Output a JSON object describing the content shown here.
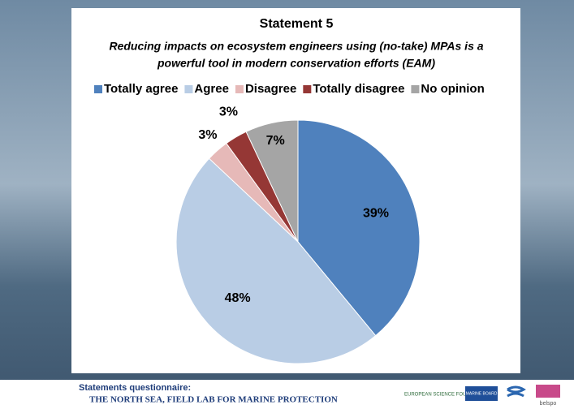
{
  "chart_data": {
    "type": "pie",
    "title": "Statement 5",
    "subtitle": [
      "Reducing impacts on ecosystem engineers using (no-take) MPAs is a",
      "powerful tool in modern conservation efforts (EAM)"
    ],
    "categories": [
      "Totally agree",
      "Agree",
      "Disagree",
      "Totally disagree",
      "No opinion"
    ],
    "values": [
      39,
      48,
      3,
      3,
      7
    ],
    "value_labels": [
      "39%",
      "48%",
      "3%",
      "3%",
      "7%"
    ],
    "colors": [
      "#4f81bd",
      "#b9cde5",
      "#e6b9b8",
      "#953735",
      "#a5a5a5"
    ],
    "legend": "top"
  },
  "footer": {
    "lines": [
      "Statements questionnaire:",
      "THE NORTH SEA, FIELD LAB FOR MARINE PROTECTION"
    ],
    "logos": [
      "EUROPEAN SCIENCE FOUNDATION",
      "MARINE BOARD",
      "belspo"
    ]
  }
}
